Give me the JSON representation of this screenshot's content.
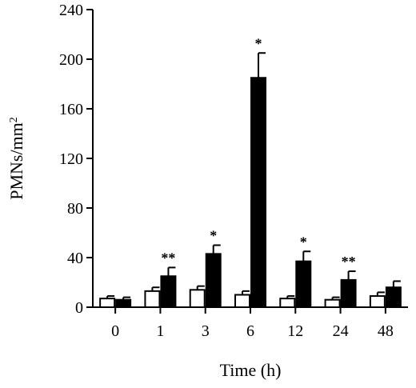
{
  "chart_data": {
    "type": "bar",
    "title": "",
    "xlabel": "Time (h)",
    "ylabel_main": "PMNs/mm",
    "ylabel_sup": "2",
    "categories": [
      "0",
      "1",
      "3",
      "6",
      "12",
      "24",
      "48"
    ],
    "ylim": [
      0,
      240
    ],
    "yticks": [
      "0",
      "40",
      "80",
      "120",
      "160",
      "200",
      "240"
    ],
    "grid": false,
    "legend": "none",
    "series": [
      {
        "fill": "#ffffff",
        "values": [
          7,
          13,
          14,
          10,
          7,
          6,
          9
        ],
        "errors": [
          2,
          3,
          3,
          3,
          2,
          2,
          3
        ]
      },
      {
        "fill": "#000000",
        "values": [
          6,
          25,
          43,
          185,
          37,
          22,
          16
        ],
        "errors": [
          2,
          7,
          7,
          20,
          8,
          7,
          5
        ]
      }
    ],
    "annotations": [
      "",
      "**",
      "*",
      "*",
      "*",
      "**",
      ""
    ]
  }
}
